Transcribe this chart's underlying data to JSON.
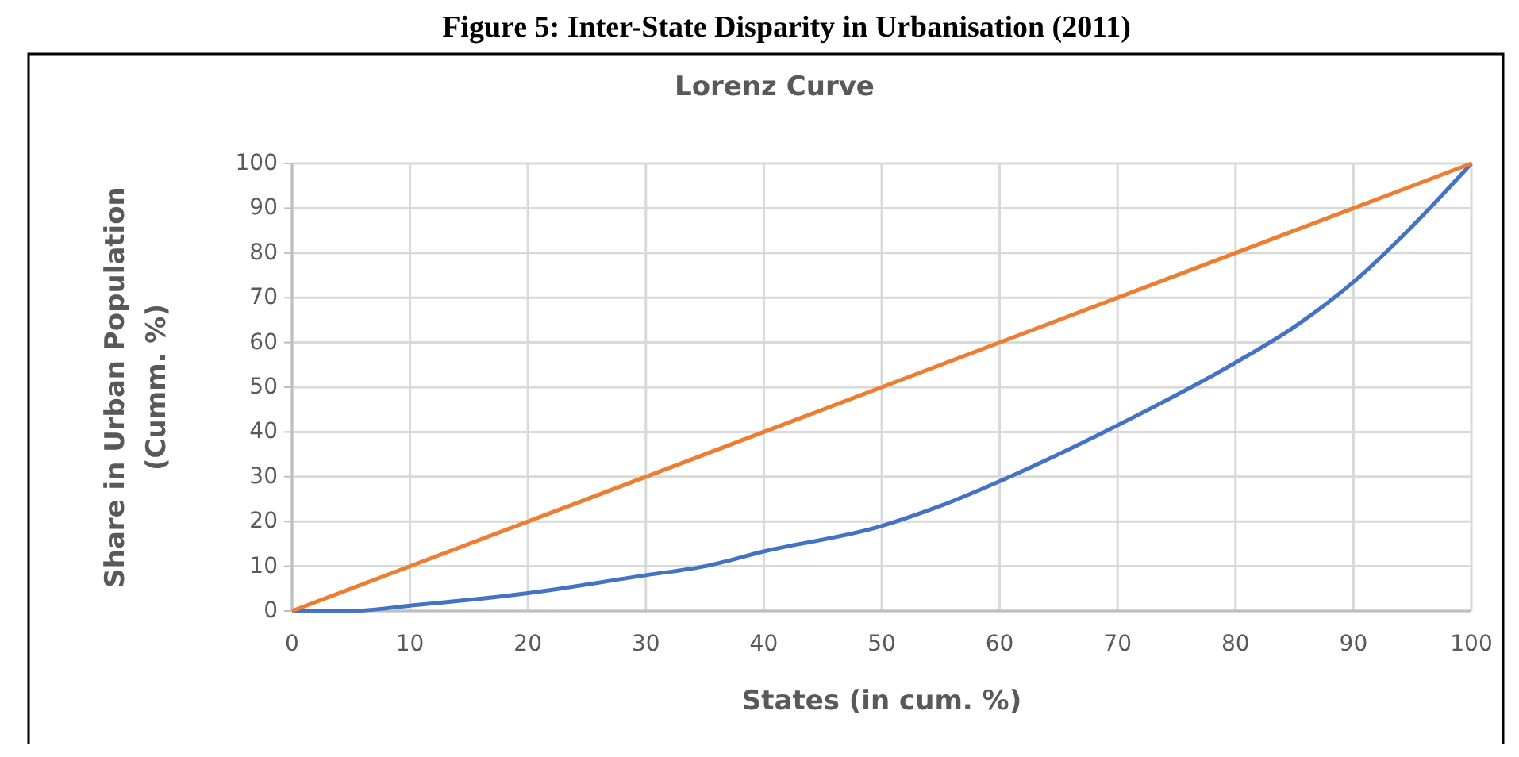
{
  "chart_data": {
    "type": "line",
    "title": "Figure 5: Inter-State Disparity in Urbanisation (2011)",
    "subtitle": "Lorenz Curve",
    "xlabel": "States (in cum. %)",
    "ylabel": "Share in Urban Population (Cumm. %)",
    "xlim": [
      0,
      100
    ],
    "xticks": [
      0,
      10,
      20,
      30,
      40,
      50,
      60,
      70,
      80,
      90,
      100
    ],
    "ylim": [
      0,
      100
    ],
    "yticks": [
      0,
      10,
      20,
      30,
      40,
      50,
      60,
      70,
      80,
      90,
      100
    ],
    "grid": true,
    "marker": "none",
    "line_style": "solid",
    "series": [
      {
        "color": "#4472c4",
        "x": [
          0,
          5,
          10,
          20,
          30,
          35,
          40,
          50,
          55,
          60,
          70,
          80,
          85,
          90,
          95,
          100
        ],
        "values": [
          0,
          0,
          1.2,
          4,
          8,
          10,
          13.3,
          19,
          23.5,
          29,
          41.5,
          55.5,
          63.5,
          73.5,
          86,
          100
        ]
      },
      {
        "color": "#ed7d31",
        "x": [
          0,
          100
        ],
        "values": [
          0,
          100
        ]
      }
    ]
  }
}
